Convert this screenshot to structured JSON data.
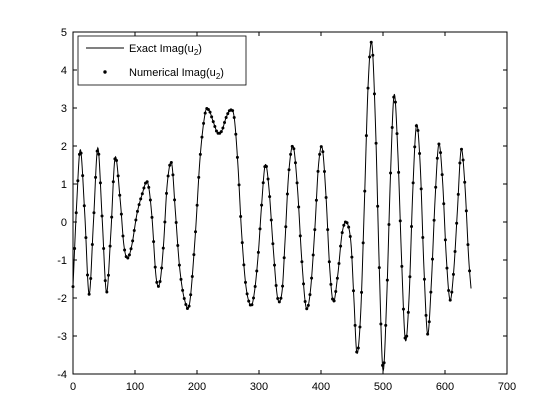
{
  "chart_data": {
    "type": "line",
    "xlim": [
      0,
      700
    ],
    "ylim": [
      -4,
      5
    ],
    "x_ticks": [
      0,
      100,
      200,
      300,
      400,
      500,
      600,
      700
    ],
    "y_ticks": [
      -4,
      -3,
      -2,
      -1,
      0,
      1,
      2,
      3,
      4,
      5
    ],
    "grid": false,
    "legend_position": "top-left",
    "series": [
      {
        "name": "Exact Imag(u₂)",
        "style": "solid-line",
        "color": "#000000",
        "x": [
          0,
          6,
          12,
          19,
          26,
          33,
          40,
          47,
          54,
          61,
          68,
          76,
          82,
          88,
          95,
          103,
          111,
          120,
          127,
          134,
          140,
          146,
          152,
          159,
          165,
          172,
          180,
          188,
          197,
          205,
          213,
          219,
          226,
          233,
          240,
          247,
          254,
          260,
          266,
          272,
          279,
          287,
          293,
          299,
          304,
          310,
          316,
          323,
          330,
          337,
          342,
          348,
          355,
          362,
          369,
          376,
          383,
          390,
          396,
          402,
          408,
          414,
          420,
          427,
          434,
          441,
          448,
          453,
          458,
          464,
          470,
          476,
          482,
          488,
          494,
          500,
          506,
          512,
          518,
          524,
          530,
          536,
          542,
          548,
          554,
          560,
          566,
          572,
          578,
          584,
          590,
          596,
          602,
          608,
          614,
          620,
          626,
          632,
          638,
          642
        ],
        "y": [
          -1.7,
          0.5,
          1.9,
          0.2,
          -1.9,
          0.0,
          1.95,
          0.1,
          -1.85,
          -0.3,
          1.7,
          0.6,
          -0.6,
          -0.95,
          -0.6,
          0.2,
          0.7,
          1.05,
          0.2,
          -1.45,
          -1.6,
          -0.6,
          1.0,
          1.55,
          0.3,
          -1.2,
          -2.05,
          -2.15,
          -0.4,
          1.7,
          2.85,
          2.95,
          2.65,
          2.35,
          2.4,
          2.75,
          2.95,
          2.75,
          1.5,
          -0.3,
          -1.7,
          -2.2,
          -1.8,
          -0.8,
          0.4,
          1.5,
          0.9,
          -0.7,
          -2.0,
          -1.85,
          -0.5,
          1.3,
          2.0,
          0.9,
          -1.0,
          -2.25,
          -1.8,
          -0.2,
          1.5,
          1.95,
          0.7,
          -1.2,
          -2.1,
          -1.4,
          -0.3,
          0.0,
          -0.5,
          -2.0,
          -3.45,
          -2.4,
          0.5,
          3.6,
          4.7,
          2.5,
          -1.2,
          -3.9,
          -2.0,
          1.2,
          3.35,
          1.8,
          -1.0,
          -3.1,
          -2.0,
          0.8,
          2.55,
          1.5,
          -1.2,
          -2.95,
          -1.6,
          0.6,
          2.05,
          1.1,
          -0.9,
          -2.05,
          -1.3,
          0.3,
          1.9,
          1.0,
          -0.9,
          -1.75
        ]
      },
      {
        "name": "Numerical Imag(u₂)",
        "style": "dots",
        "color": "#000000",
        "same_as": "Exact Imag(u₂)"
      }
    ]
  }
}
